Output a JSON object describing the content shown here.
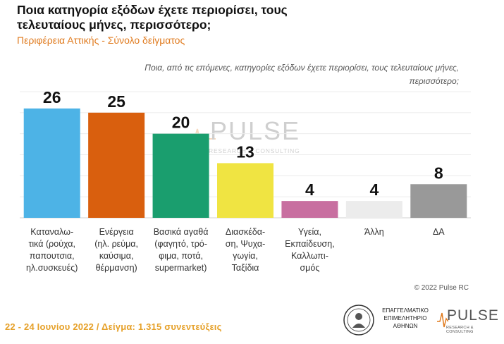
{
  "header": {
    "title_line1": "Ποια κατηγορία εξόδων έχετε περιορίσει, τους",
    "title_line2": "τελευταίους μήνες, περισσότερο;",
    "subtitle": "Περιφέρεια Αττικής - Σύνολο δείγματος",
    "question_line1": "Ποια, από τις επόμενες, κατηγορίες εξόδων έχετε περιορίσει, τους τελευταίους μήνες,",
    "question_line2": "περισσότερο;"
  },
  "chart_data": {
    "type": "bar",
    "categories": [
      [
        "Καταναλω-",
        "τικά (ρούχα,",
        "παπουτσια,",
        "ηλ.συσκευές)"
      ],
      [
        "Ενέργεια",
        "(ηλ. ρεύμα,",
        "καύσιμα,",
        "θέρμανση)"
      ],
      [
        "Βασικά αγαθά",
        "(φαγητό, τρό-",
        "φιμα, ποτά,",
        "supermarket)"
      ],
      [
        "Διασκέδα-",
        "ση, Ψυχα-",
        "γωγία,",
        "Ταξίδια"
      ],
      [
        "Υγεία,",
        "Εκπαίδευση,",
        "Καλλωπι-",
        "σμός"
      ],
      [
        "Άλλη"
      ],
      [
        "ΔΑ"
      ]
    ],
    "values": [
      26,
      25,
      20,
      13,
      4,
      4,
      8
    ],
    "colors": [
      "#4db3e6",
      "#d95f0e",
      "#1a9e6e",
      "#f0e442",
      "#c86fa0",
      "#ececec",
      "#999999"
    ],
    "ylim": [
      0,
      30
    ],
    "grid": true
  },
  "watermark": {
    "word": "PULSE",
    "sub": "RESEARCH & CONSULTING"
  },
  "footer": {
    "copyright": "© 2022 Pulse RC",
    "sample": "22 - 24 Ιουνίου  2022  /  Δείγμα:  1.315 συνεντεύξεις",
    "chamber_text": [
      "ΕΠΑΓΓΕΛΜΑΤΙΚΟ",
      "ΕΠΙΜΕΛΗΤΗΡΙΟ",
      "ΑΘΗΝΩΝ"
    ],
    "logo_word": "PULSE",
    "logo_sub": "RESEARCH & CONSULTING"
  },
  "icons": {
    "chamber_logo": "chamber-seal-icon",
    "pulse_wave": "heartbeat-wave-icon"
  }
}
